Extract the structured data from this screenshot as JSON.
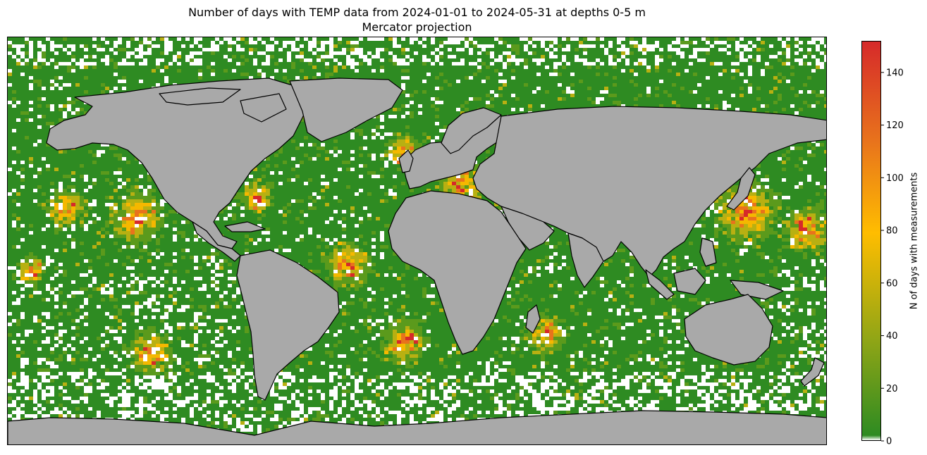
{
  "title": {
    "line1": "Number of days with TEMP data from 2024-01-01 to 2024-05-31 at depths 0-5 m",
    "line2": "Mercator projection"
  },
  "colorbar": {
    "label": "N of days with measurements",
    "min": 0,
    "max": 152,
    "ticks": [
      "0",
      "20",
      "40",
      "60",
      "80",
      "100",
      "120",
      "140"
    ],
    "colors": [
      "#ffffff",
      "#2e8b22",
      "#8fa516",
      "#ffbd00",
      "#e8731c",
      "#d62a2a"
    ]
  },
  "map": {
    "projection": "Mercator",
    "land_color": "#a9a9a9",
    "coastline_color": "#000000",
    "no_data_color": "#ffffff"
  }
}
